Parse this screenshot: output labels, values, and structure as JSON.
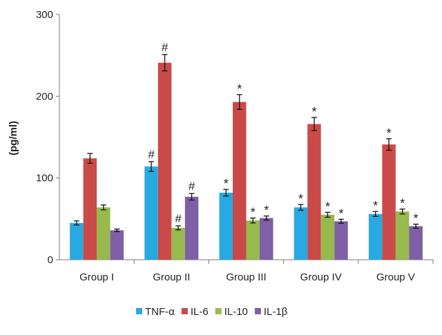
{
  "chart_data": {
    "type": "bar",
    "title": "",
    "xlabel": "",
    "ylabel": "(pg/ml)",
    "ylim": [
      0,
      300
    ],
    "yticks": [
      0,
      100,
      200,
      300
    ],
    "grid": false,
    "legend_position": "bottom",
    "categories": [
      "Group I",
      "Group II",
      "Group III",
      "Group IV",
      "Group V"
    ],
    "series": [
      {
        "name": "TNF-α",
        "color": "#29a9e1",
        "values": [
          45,
          114,
          82,
          64,
          56
        ],
        "errors": [
          2.5,
          6,
          4,
          3.5,
          3
        ],
        "annotations": [
          "",
          "#",
          "*",
          "*",
          "*"
        ]
      },
      {
        "name": "IL-6",
        "color": "#c94a48",
        "values": [
          124,
          241,
          193,
          166,
          141
        ],
        "errors": [
          6,
          10,
          9,
          8,
          7
        ],
        "annotations": [
          "",
          "#",
          "*",
          "*",
          "*"
        ]
      },
      {
        "name": "IL-10",
        "color": "#97b94d",
        "values": [
          64,
          39,
          48,
          55,
          59
        ],
        "errors": [
          3,
          2.5,
          3,
          3,
          3
        ],
        "annotations": [
          "",
          "#",
          "*",
          "*",
          "*"
        ]
      },
      {
        "name": "IL-1β",
        "color": "#7f5fa6",
        "values": [
          36,
          77,
          51,
          47,
          41
        ],
        "errors": [
          1.5,
          4,
          2.5,
          2.5,
          2.5
        ],
        "annotations": [
          "",
          "#",
          "*",
          "*",
          "*"
        ]
      }
    ]
  }
}
